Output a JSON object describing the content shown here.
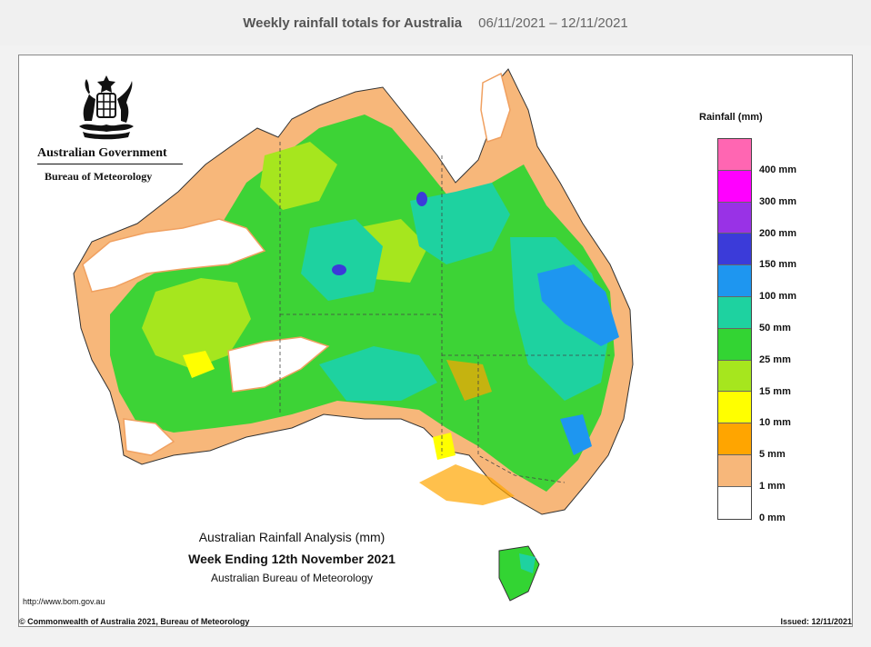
{
  "header": {
    "title": "Weekly rainfall totals for Australia",
    "date_range": "06/11/2021 – 12/11/2021"
  },
  "logo": {
    "government": "Australian Government",
    "bureau": "Bureau of Meteorology"
  },
  "legend": {
    "title": "Rainfall (mm)",
    "classes": [
      {
        "label": "400 mm",
        "color": "#ff66b2"
      },
      {
        "label": "300 mm",
        "color": "#ff00ff"
      },
      {
        "label": "200 mm",
        "color": "#9932e6"
      },
      {
        "label": "150 mm",
        "color": "#3b3bd9"
      },
      {
        "label": "100 mm",
        "color": "#1e96f0"
      },
      {
        "label": "50 mm",
        "color": "#1ed2a0"
      },
      {
        "label": "25 mm",
        "color": "#33d433"
      },
      {
        "label": "15 mm",
        "color": "#a6e61e"
      },
      {
        "label": "10 mm",
        "color": "#ffff00"
      },
      {
        "label": "5 mm",
        "color": "#ffa500"
      },
      {
        "label": "1 mm",
        "color": "#f7b77a"
      },
      {
        "label": "0 mm",
        "color": "#ffffff"
      }
    ]
  },
  "caption": {
    "line1": "Australian Rainfall Analysis (mm)",
    "line2": "Week Ending 12th November 2021",
    "line3": "Australian Bureau of Meteorology"
  },
  "footer": {
    "url": "http://www.bom.gov.au",
    "copyright": "© Commonwealth of Australia 2021, Bureau of Meteorology",
    "issued": "Issued: 12/11/2021"
  }
}
